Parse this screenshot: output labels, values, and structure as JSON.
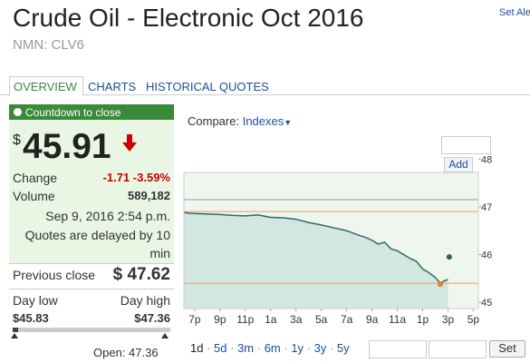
{
  "header": {
    "title": "Crude Oil - Electronic Oct 2016",
    "symbol": "NMN: CLV6",
    "alert_link": "Set Ale"
  },
  "tabs": [
    "OVERVIEW",
    "CHARTS",
    "HISTORICAL QUOTES"
  ],
  "quote": {
    "countdown": "Countdown to close",
    "currency": "$",
    "price": "45.91",
    "change_label": "Change",
    "change": "-1.71",
    "change_pct": "-3.59%",
    "volume_label": "Volume",
    "volume": "589,182",
    "timestamp": "Sep 9, 2016 2:54 p.m.",
    "delay_note": "Quotes are delayed by 10 min",
    "prev_close_label": "Previous close",
    "prev_close": "$ 47.62",
    "day_low_label": "Day low",
    "day_high_label": "Day high",
    "day_low": "$45.83",
    "day_high": "$47.36",
    "open": "Open: 47.36"
  },
  "controls": {
    "compare_label": "Compare:",
    "compare_menu": "Indexes",
    "add_button": "Add",
    "ranges": [
      "1d",
      "5d",
      "3m",
      "6m",
      "1y",
      "3y",
      "5y"
    ],
    "set_button": "Set"
  },
  "chart_data": {
    "type": "area",
    "x": [
      -0.85,
      -0.5,
      0,
      1,
      2,
      3,
      4,
      5,
      6,
      7,
      8,
      9,
      10,
      11,
      12,
      13,
      13.5,
      14,
      14.5,
      15,
      15.5,
      16,
      16.5,
      17,
      17.5,
      18,
      18.5,
      19,
      19.4,
      19.7,
      20
    ],
    "series": [
      {
        "name": "CLV6",
        "color": "#2e6b66",
        "values": [
          46.88,
          46.87,
          46.86,
          46.85,
          46.84,
          46.82,
          46.81,
          46.83,
          46.78,
          46.77,
          46.74,
          46.67,
          46.62,
          46.56,
          46.5,
          46.4,
          46.36,
          46.3,
          46.22,
          46.26,
          46.12,
          46.08,
          46.0,
          45.92,
          45.86,
          45.7,
          45.62,
          45.52,
          45.4,
          45.45,
          45.48
        ]
      }
    ],
    "ref_lines": [
      {
        "value": 47.15,
        "color": "#999999"
      },
      {
        "value": 46.9,
        "color": "#f0a060"
      },
      {
        "value": 45.4,
        "color": "#f0a060"
      }
    ],
    "markers": [
      {
        "x": 19.4,
        "y": 45.38,
        "color": "#e8821e"
      },
      {
        "x": 20.1,
        "y": 45.95,
        "color": "#2e5f5a"
      }
    ],
    "xlim": [
      -0.85,
      22.4
    ],
    "ylim": [
      44.87,
      47.72
    ],
    "xticks": [
      {
        "value": 0,
        "label": "7p"
      },
      {
        "value": 2,
        "label": "9p"
      },
      {
        "value": 4,
        "label": "11p"
      },
      {
        "value": 6,
        "label": "1a"
      },
      {
        "value": 8,
        "label": "3a"
      },
      {
        "value": 10,
        "label": "5a"
      },
      {
        "value": 12,
        "label": "7a"
      },
      {
        "value": 14,
        "label": "9a"
      },
      {
        "value": 16,
        "label": "11a"
      },
      {
        "value": 18,
        "label": "1p"
      },
      {
        "value": 20,
        "label": "3p"
      },
      {
        "value": 22,
        "label": "5p"
      }
    ],
    "yticks": [
      45,
      46,
      47,
      48
    ]
  }
}
